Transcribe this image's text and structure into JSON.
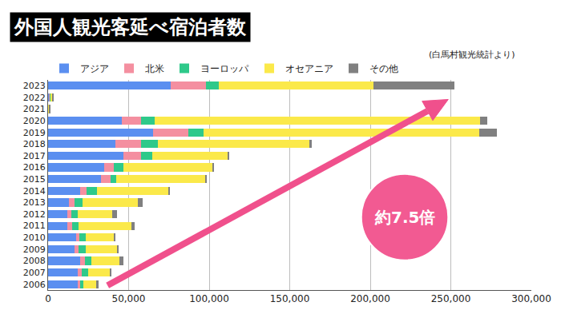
{
  "chart_data": {
    "type": "bar",
    "title": "外国人観光客延べ宿泊者数",
    "subtitle": "(白馬村観光統計より)",
    "annotations": [
      {
        "text": "約7.5倍"
      }
    ],
    "orientation": "horizontal",
    "stacked": true,
    "grid": true,
    "legend": "top",
    "categories": [
      "2006",
      "2007",
      "2008",
      "2009",
      "2010",
      "2011",
      "2012",
      "2013",
      "2014",
      "2015",
      "2016",
      "2017",
      "2018",
      "2019",
      "2020",
      "2021",
      "2022",
      "2023"
    ],
    "series": [
      {
        "name": "アジア",
        "color": "#5b8ff0",
        "values": [
          18500,
          18500,
          20000,
          16500,
          17500,
          12000,
          12000,
          13000,
          20000,
          33000,
          35000,
          47000,
          42000,
          65000,
          46000,
          200,
          500,
          76000
        ]
      },
      {
        "name": "北米",
        "color": "#f48fa0",
        "values": [
          1500,
          2500,
          3000,
          2500,
          2000,
          3000,
          2500,
          3500,
          4000,
          6000,
          6000,
          10500,
          15500,
          22000,
          11500,
          100,
          500,
          22000
        ]
      },
      {
        "name": "ヨーロッパ",
        "color": "#2ec98a",
        "values": [
          2000,
          4000,
          4000,
          4500,
          4000,
          4000,
          4000,
          5000,
          6500,
          3500,
          6000,
          7000,
          10500,
          9500,
          8500,
          100,
          300,
          8000
        ]
      },
      {
        "name": "オセアニア",
        "color": "#fbe94a",
        "values": [
          8000,
          13500,
          17500,
          19500,
          17500,
          32500,
          21500,
          34000,
          44000,
          55000,
          55000,
          47000,
          94000,
          171000,
          202000,
          100,
          1500,
          96000
        ]
      },
      {
        "name": "その他",
        "color": "#808080",
        "values": [
          1500,
          1000,
          2500,
          1000,
          1000,
          2000,
          3000,
          3000,
          1000,
          1000,
          1000,
          1000,
          1500,
          11000,
          4500,
          500,
          500,
          50000
        ]
      }
    ],
    "xlim": [
      0,
      300000
    ],
    "xticks": [
      0,
      {
        "value": 50000,
        "label": "50,000"
      },
      {
        "value": 100000,
        "label": "100,000"
      },
      {
        "value": 150000,
        "label": "150,000"
      },
      {
        "value": 200000,
        "label": "200,000"
      },
      {
        "value": 250000,
        "label": "250,000"
      },
      {
        "value": 300000,
        "label": "300,000"
      }
    ]
  }
}
